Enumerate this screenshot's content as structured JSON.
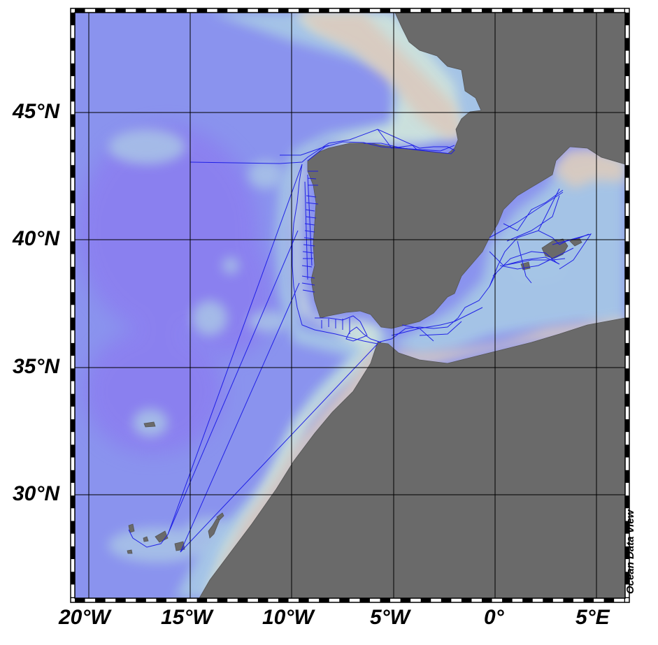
{
  "map": {
    "lat_labels": [
      "45°N",
      "40°N",
      "35°N",
      "30°N"
    ],
    "lon_labels": [
      "20°W",
      "15°W",
      "10°W",
      "5°W",
      "0°",
      "5°E"
    ],
    "credit": "Ocean Data View",
    "colors": {
      "deep_ocean": "#8c7ff0",
      "ocean": "#8a93ee",
      "shelf": "#9cb8ea",
      "shallow": "#cfe0e0",
      "coast_beige": "#d9cbc0",
      "land": "#6a6a6a",
      "track": "#1a1ae6",
      "grid": "#000000"
    }
  }
}
